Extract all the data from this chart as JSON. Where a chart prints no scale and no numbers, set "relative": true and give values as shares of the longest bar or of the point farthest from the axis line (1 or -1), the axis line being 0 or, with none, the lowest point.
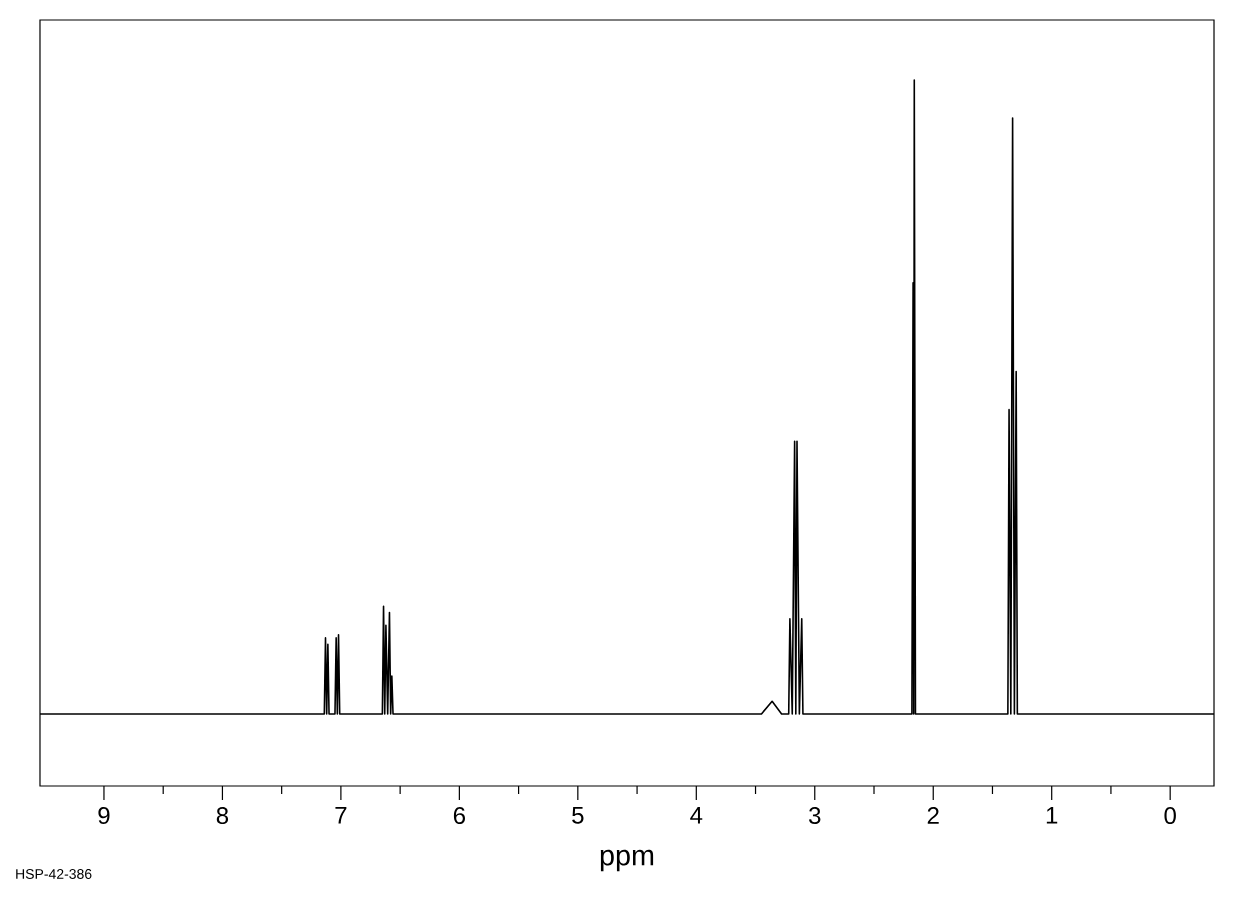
{
  "chart_data": {
    "type": "line",
    "relative": true,
    "xlabel": "ppm",
    "annotations": [
      "HSP-42-386"
    ],
    "xlim": [
      9.54,
      -0.37
    ],
    "xticks": [
      9,
      8,
      7,
      6,
      5,
      4,
      3,
      2,
      1,
      0
    ],
    "x": [
      9.54,
      7.14,
      7.13,
      7.12,
      7.11,
      7.1,
      7.05,
      7.04,
      7.03,
      7.02,
      7.01,
      6.65,
      6.64,
      6.63,
      6.62,
      6.605,
      6.59,
      6.58,
      6.57,
      6.56,
      3.45,
      3.36,
      3.28,
      3.22,
      3.21,
      3.19,
      3.17,
      3.16,
      3.15,
      3.13,
      3.11,
      3.1,
      2.18,
      2.17,
      2.165,
      2.16,
      2.15,
      1.37,
      1.36,
      1.345,
      1.33,
      1.315,
      1.3,
      1.29,
      -0.37
    ],
    "series": [
      {
        "color": "#000000",
        "values": [
          0,
          0,
          0.12,
          0,
          0.11,
          0,
          0,
          0.12,
          0,
          0.125,
          0,
          0,
          0.17,
          0,
          0.14,
          0,
          0.16,
          0,
          0.06,
          0,
          0,
          0.02,
          0,
          0,
          0.15,
          0,
          0.43,
          0,
          0.43,
          0,
          0.15,
          0,
          0,
          0.68,
          0,
          1.0,
          0,
          0,
          0.48,
          0,
          0.94,
          0,
          0.54,
          0,
          0
        ]
      }
    ]
  }
}
